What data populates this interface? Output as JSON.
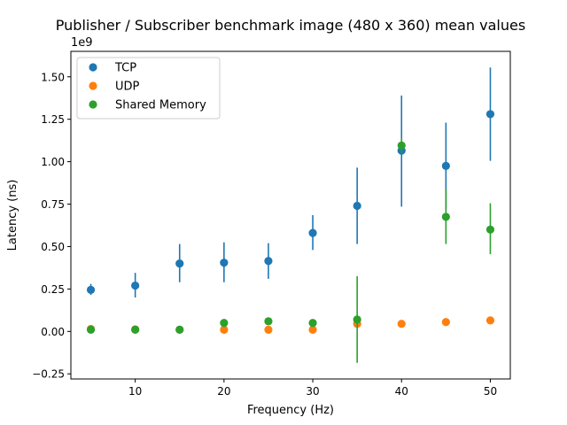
{
  "chart_data": {
    "type": "scatter",
    "title": "Publisher / Subscriber benchmark image (480 x 360) mean values",
    "xlabel": "Frequency (Hz)",
    "ylabel": "Latency (ns)",
    "y_offset_label": "1e9",
    "xlim": [
      2.75,
      52.25
    ],
    "ylim": [
      -0.28,
      1.65
    ],
    "y_scale_factor": 1000000000,
    "x_ticks": [
      10,
      20,
      30,
      40,
      50
    ],
    "x_tick_labels": [
      "10",
      "20",
      "30",
      "40",
      "50"
    ],
    "y_ticks": [
      -0.25,
      0.0,
      0.25,
      0.5,
      0.75,
      1.0,
      1.25,
      1.5
    ],
    "y_tick_labels": [
      "−0.25",
      "0.00",
      "0.25",
      "0.50",
      "0.75",
      "1.00",
      "1.25",
      "1.50"
    ],
    "grid": false,
    "legend_position": "upper-left",
    "error_bars": true,
    "series": [
      {
        "name": "TCP",
        "color": "#1f77b4",
        "x": [
          5,
          10,
          15,
          20,
          25,
          30,
          35,
          40,
          45,
          50
        ],
        "y": [
          0.245,
          0.27,
          0.4,
          0.405,
          0.415,
          0.58,
          0.74,
          1.065,
          0.975,
          1.28
        ],
        "y_low": [
          0.215,
          0.2,
          0.29,
          0.29,
          0.31,
          0.48,
          0.515,
          0.735,
          0.72,
          1.005
        ],
        "y_high": [
          0.28,
          0.345,
          0.515,
          0.525,
          0.52,
          0.685,
          0.965,
          1.39,
          1.23,
          1.555
        ]
      },
      {
        "name": "UDP",
        "color": "#ff7f0e",
        "x": [
          5,
          10,
          15,
          20,
          25,
          30,
          35,
          40,
          45,
          50
        ],
        "y": [
          0.015,
          0.012,
          0.01,
          0.01,
          0.01,
          0.01,
          0.045,
          0.045,
          0.055,
          0.065
        ],
        "y_low": [
          0.015,
          0.012,
          0.01,
          0.01,
          0.01,
          0.01,
          0.045,
          0.045,
          0.055,
          0.065
        ],
        "y_high": [
          0.015,
          0.012,
          0.01,
          0.01,
          0.01,
          0.01,
          0.045,
          0.045,
          0.055,
          0.065
        ]
      },
      {
        "name": "Shared Memory",
        "color": "#2ca02c",
        "x": [
          5,
          10,
          15,
          20,
          25,
          30,
          35,
          40,
          45,
          50
        ],
        "y": [
          0.01,
          0.01,
          0.01,
          0.05,
          0.06,
          0.05,
          0.07,
          1.095,
          0.675,
          0.6
        ],
        "y_low": [
          0.01,
          0.01,
          0.01,
          0.035,
          0.05,
          0.04,
          -0.185,
          1.05,
          0.515,
          0.455
        ],
        "y_high": [
          0.01,
          0.01,
          0.01,
          0.065,
          0.07,
          0.06,
          0.325,
          1.14,
          0.84,
          0.755
        ]
      }
    ]
  }
}
